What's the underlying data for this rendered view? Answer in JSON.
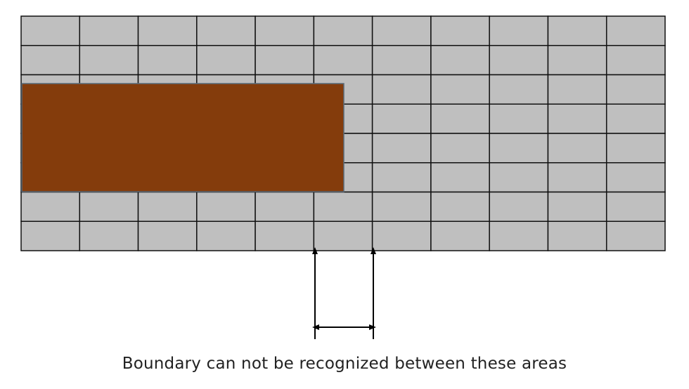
{
  "caption": "Boundary can not be recognized between these areas",
  "grid": {
    "rows": 8,
    "cols": 11
  },
  "overlay_block": {
    "covers_cols": 5.5,
    "covers_rows": 3.75
  },
  "colors": {
    "cell_fill": "#bfbfbf",
    "grid_line": "#111111",
    "overlay_fill": "#843c0c",
    "overlay_stroke": "#5a6b7a",
    "arrow": "#000000"
  }
}
